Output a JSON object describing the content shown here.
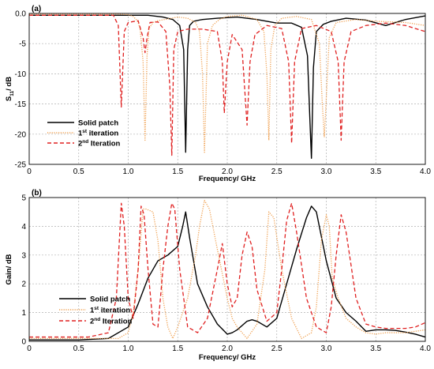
{
  "chart_data": [
    {
      "type": "line",
      "panel_label": "(a)",
      "xlabel": "Frequency/ GHz",
      "ylabel_main": "S",
      "ylabel_sub": "11",
      "ylabel_rest": "/ dB",
      "xlim": [
        0,
        4.0
      ],
      "ylim": [
        -25,
        0
      ],
      "x_ticks": [
        "0",
        "0.5",
        "1.0",
        "1.5",
        "2.0",
        "2.5",
        "3.0",
        "3.5",
        "4.0"
      ],
      "x_tick_values": [
        0,
        0.5,
        1.0,
        1.5,
        2.0,
        2.5,
        3.0,
        3.5,
        4.0
      ],
      "y_ticks": [
        "0.0",
        "-5",
        "-10",
        "-15",
        "-20",
        "-25"
      ],
      "y_tick_values": [
        0,
        -5,
        -10,
        -15,
        -20,
        -25
      ],
      "grid": true,
      "legend_position": "bottom-left",
      "series": [
        {
          "name": "Solid patch",
          "color": "#000000",
          "style": "solid",
          "x": [
            0,
            0.5,
            1.0,
            1.2,
            1.35,
            1.45,
            1.52,
            1.56,
            1.58,
            1.6,
            1.62,
            1.66,
            1.75,
            1.9,
            2.1,
            2.3,
            2.5,
            2.65,
            2.75,
            2.81,
            2.84,
            2.85,
            2.87,
            2.9,
            2.97,
            3.05,
            3.2,
            3.4,
            3.6,
            3.8,
            4.0
          ],
          "y": [
            -0.3,
            -0.3,
            -0.3,
            -0.3,
            -0.6,
            -1.0,
            -2.0,
            -6.0,
            -23.0,
            -6.0,
            -2.0,
            -1.3,
            -1.0,
            -0.8,
            -0.6,
            -1.0,
            -1.6,
            -1.6,
            -2.3,
            -7.0,
            -20.0,
            -24.0,
            -9.0,
            -3.0,
            -1.8,
            -1.3,
            -0.8,
            -1.1,
            -2.0,
            -1.0,
            -0.4
          ]
        },
        {
          "name": "1st iteration",
          "name_main": "1",
          "name_sup": "st",
          "name_rest": " iteration",
          "color": "#F0A050",
          "style": "dotted",
          "x": [
            0,
            0.9,
            1.0,
            1.05,
            1.08,
            1.1,
            1.12,
            1.15,
            1.17,
            1.19,
            1.21,
            1.25,
            1.3,
            1.4,
            1.5,
            1.6,
            1.68,
            1.72,
            1.75,
            1.77,
            1.8,
            1.85,
            1.92,
            2.0,
            2.15,
            2.3,
            2.37,
            2.4,
            2.42,
            2.44,
            2.48,
            2.55,
            2.7,
            2.85,
            2.93,
            2.96,
            2.98,
            3.0,
            3.03,
            3.1,
            3.3,
            3.5,
            3.8,
            4.0
          ],
          "y": [
            -0.1,
            -0.1,
            -0.2,
            -0.5,
            -1.0,
            -1.5,
            -2.5,
            -8.0,
            -21.0,
            -7.0,
            -2.5,
            -1.5,
            -1.2,
            -0.9,
            -0.6,
            -0.8,
            -1.5,
            -3.0,
            -10.0,
            -23.0,
            -5.0,
            -2.0,
            -1.0,
            -0.5,
            -0.3,
            -1.0,
            -3.0,
            -10.0,
            -21.0,
            -6.0,
            -2.0,
            -0.8,
            -0.5,
            -1.0,
            -5.0,
            -15.0,
            -20.5,
            -14.0,
            -4.0,
            -1.5,
            -1.0,
            -1.3,
            -1.5,
            -2.0
          ]
        },
        {
          "name": "2nd Iteration",
          "name_main": "2",
          "name_sup": "nd",
          "name_rest": " Iteration",
          "color": "#E02020",
          "style": "dashed",
          "x": [
            0,
            0.85,
            0.9,
            0.93,
            0.96,
            1.0,
            1.1,
            1.15,
            1.17,
            1.19,
            1.22,
            1.3,
            1.38,
            1.42,
            1.44,
            1.46,
            1.5,
            1.6,
            1.75,
            1.9,
            1.95,
            1.97,
            2.0,
            2.05,
            2.15,
            2.2,
            2.23,
            2.28,
            2.4,
            2.55,
            2.62,
            2.65,
            2.68,
            2.75,
            2.9,
            3.05,
            3.12,
            3.15,
            3.18,
            3.25,
            3.4,
            3.6,
            3.8,
            4.0
          ],
          "y": [
            -0.3,
            -0.3,
            -2.0,
            -15.5,
            -3.0,
            -1.5,
            -1.2,
            -4.0,
            -6.5,
            -4.0,
            -1.5,
            -1.4,
            -3.0,
            -12.0,
            -23.5,
            -6.0,
            -3.0,
            -2.6,
            -2.6,
            -3.0,
            -8.0,
            -16.5,
            -8.0,
            -3.5,
            -6.0,
            -18.5,
            -8.0,
            -3.5,
            -2.0,
            -2.5,
            -8.0,
            -21.5,
            -8.0,
            -2.5,
            -2.0,
            -3.0,
            -8.0,
            -21.0,
            -8.0,
            -3.0,
            -2.0,
            -1.6,
            -2.0,
            -3.0
          ]
        }
      ]
    },
    {
      "type": "line",
      "panel_label": "(b)",
      "xlabel": "Frequency/ GHz",
      "ylabel": "Gain/ dB",
      "xlim": [
        0,
        4.0
      ],
      "ylim": [
        0,
        5
      ],
      "x_ticks": [
        "0",
        "0.5",
        "1.0",
        "1.5",
        "2.0",
        "2.5",
        "3.0",
        "3.5",
        "4.0"
      ],
      "x_tick_values": [
        0,
        0.5,
        1.0,
        1.5,
        2.0,
        2.5,
        3.0,
        3.5,
        4.0
      ],
      "y_ticks": [
        "0",
        "1",
        "2",
        "3",
        "4",
        "5"
      ],
      "y_tick_values": [
        0,
        1,
        2,
        3,
        4,
        5
      ],
      "grid": true,
      "legend_position": "bottom-center",
      "series": [
        {
          "name": "Solid patch",
          "color": "#000000",
          "style": "solid",
          "x": [
            0,
            0.5,
            0.8,
            1.0,
            1.1,
            1.2,
            1.3,
            1.4,
            1.5,
            1.55,
            1.58,
            1.62,
            1.7,
            1.8,
            1.9,
            2.0,
            2.05,
            2.1,
            2.2,
            2.25,
            2.3,
            2.4,
            2.5,
            2.6,
            2.7,
            2.8,
            2.85,
            2.9,
            3.0,
            3.1,
            3.2,
            3.3,
            3.4,
            3.5,
            3.6,
            3.7,
            3.8,
            3.9,
            4.0
          ],
          "y": [
            0.05,
            0.05,
            0.1,
            0.5,
            1.3,
            2.2,
            2.8,
            3.0,
            3.3,
            4.0,
            4.5,
            3.6,
            2.0,
            1.2,
            0.6,
            0.25,
            0.3,
            0.4,
            0.7,
            0.75,
            0.7,
            0.5,
            0.8,
            2.0,
            3.2,
            4.3,
            4.7,
            4.5,
            2.8,
            1.5,
            1.0,
            0.7,
            0.35,
            0.4,
            0.4,
            0.38,
            0.32,
            0.25,
            0.15
          ]
        },
        {
          "name": "1st iteration",
          "name_main": "1",
          "name_sup": "st",
          "name_rest": " iteration",
          "color": "#F0A050",
          "style": "dotted",
          "x": [
            0,
            0.7,
            0.9,
            1.0,
            1.05,
            1.1,
            1.15,
            1.18,
            1.25,
            1.3,
            1.35,
            1.4,
            1.45,
            1.5,
            1.6,
            1.68,
            1.72,
            1.77,
            1.82,
            1.9,
            2.0,
            2.05,
            2.1,
            2.2,
            2.3,
            2.38,
            2.42,
            2.47,
            2.55,
            2.65,
            2.75,
            2.85,
            2.9,
            2.95,
            3.0,
            3.03,
            3.06,
            3.12,
            3.2,
            3.3,
            3.4,
            3.5,
            3.6,
            3.8,
            4.0
          ],
          "y": [
            0.1,
            0.1,
            0.1,
            0.3,
            1.0,
            2.5,
            4.6,
            4.6,
            4.5,
            3.5,
            1.5,
            0.5,
            0.1,
            0.5,
            1.5,
            3.0,
            4.0,
            4.9,
            4.6,
            3.2,
            1.5,
            0.8,
            0.5,
            0.1,
            0.6,
            2.5,
            4.5,
            4.3,
            2.5,
            0.8,
            0.1,
            0.3,
            1.2,
            3.5,
            4.4,
            4.0,
            2.2,
            1.5,
            0.8,
            0.5,
            0.3,
            0.25,
            0.3,
            0.3,
            0.4
          ]
        },
        {
          "name": "2nd Iteration",
          "name_main": "2",
          "name_sup": "nd",
          "name_rest": " Iteration",
          "color": "#E02020",
          "style": "dashed",
          "x": [
            0,
            0.6,
            0.8,
            0.88,
            0.93,
            0.96,
            1.0,
            1.05,
            1.1,
            1.13,
            1.16,
            1.2,
            1.25,
            1.3,
            1.35,
            1.4,
            1.44,
            1.47,
            1.52,
            1.6,
            1.7,
            1.8,
            1.9,
            1.95,
            2.0,
            2.05,
            2.1,
            2.15,
            2.2,
            2.25,
            2.3,
            2.4,
            2.5,
            2.55,
            2.6,
            2.65,
            2.7,
            2.8,
            2.9,
            3.0,
            3.05,
            3.1,
            3.15,
            3.2,
            3.3,
            3.4,
            3.5,
            3.6,
            3.8,
            3.9,
            4.0
          ],
          "y": [
            0.15,
            0.15,
            0.3,
            1.5,
            4.8,
            4.0,
            1.5,
            0.8,
            2.5,
            4.7,
            4.4,
            2.5,
            0.6,
            0.5,
            2.5,
            4.0,
            4.8,
            4.6,
            2.5,
            0.5,
            0.3,
            0.8,
            2.5,
            3.4,
            2.0,
            1.2,
            1.5,
            3.0,
            3.8,
            3.3,
            1.8,
            0.7,
            1.0,
            2.5,
            4.2,
            4.8,
            3.8,
            1.5,
            0.5,
            0.3,
            1.2,
            3.0,
            4.4,
            3.8,
            1.5,
            0.6,
            0.5,
            0.45,
            0.45,
            0.5,
            0.65
          ]
        }
      ]
    }
  ]
}
